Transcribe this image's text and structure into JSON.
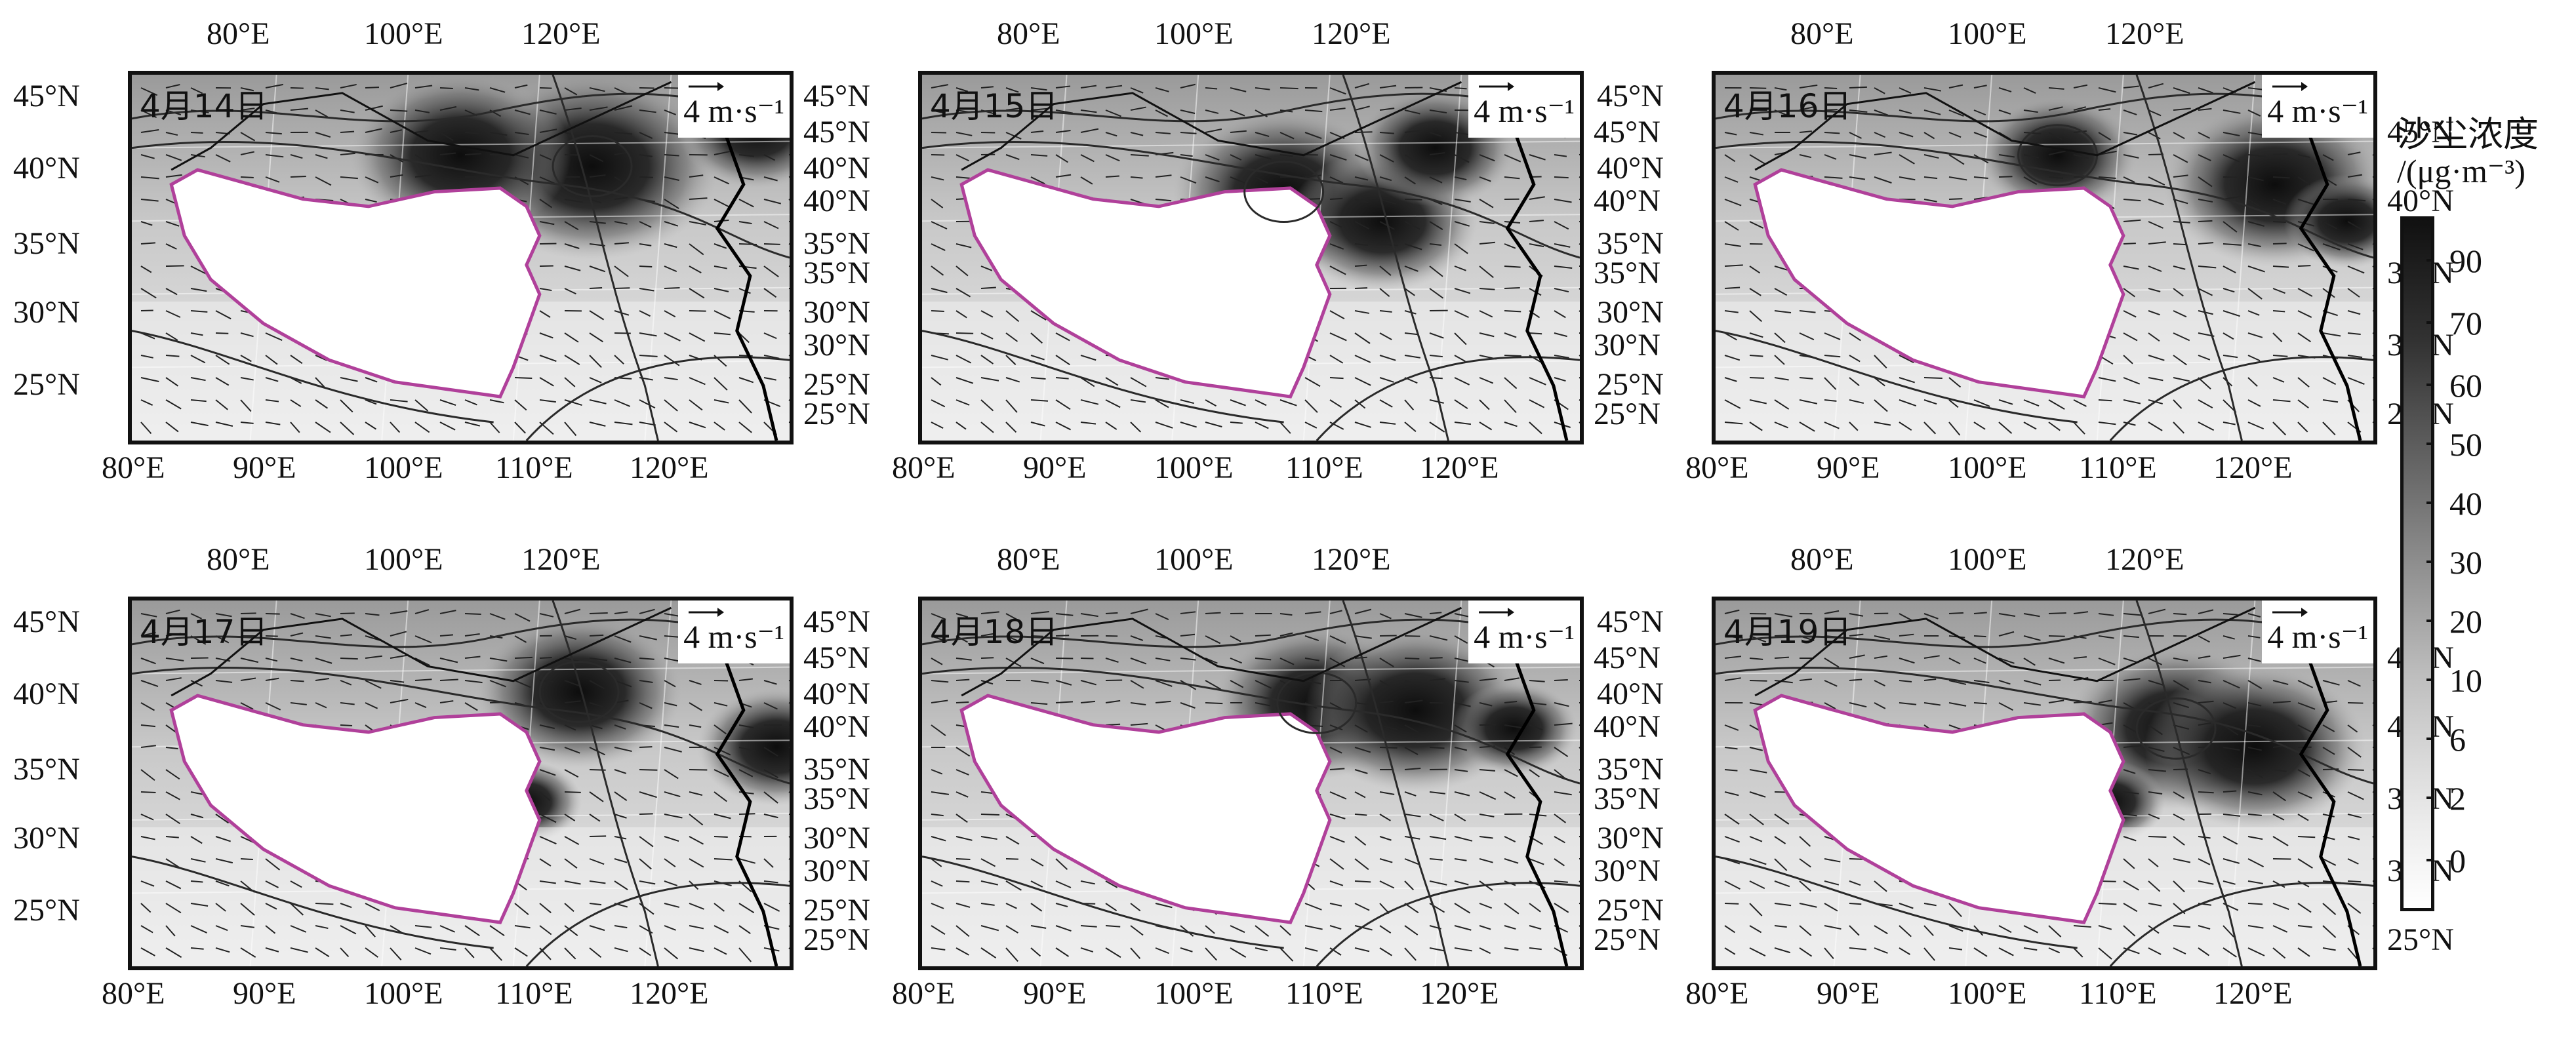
{
  "panels": [
    {
      "date": "4月14日"
    },
    {
      "date": "4月15日"
    },
    {
      "date": "4月16日"
    },
    {
      "date": "4月17日"
    },
    {
      "date": "4月18日"
    },
    {
      "date": "4月19日"
    }
  ],
  "wind_scale": "4 m·s⁻¹",
  "top_lon_labels": [
    "80°E",
    "100°E",
    "120°E"
  ],
  "bottom_lon_labels": [
    "80°E",
    "90°E",
    "100°E",
    "110°E",
    "120°E"
  ],
  "left_lat_labels": [
    "45°N",
    "40°N",
    "35°N",
    "30°N",
    "25°N"
  ],
  "right_lat_labels": [
    "45°N",
    "40°N",
    "35°N",
    "30°N",
    "25°N"
  ],
  "colorbar": {
    "title": "沙尘浓度",
    "unit": "/(μg·m⁻³)",
    "ticks": [
      "90",
      "70",
      "60",
      "50",
      "40",
      "30",
      "20",
      "10",
      "6",
      "2",
      "0"
    ]
  },
  "colors": {
    "plateau_outline": "#b0409a",
    "dust_max": "#111111",
    "dust_min": "#ffffff"
  }
}
